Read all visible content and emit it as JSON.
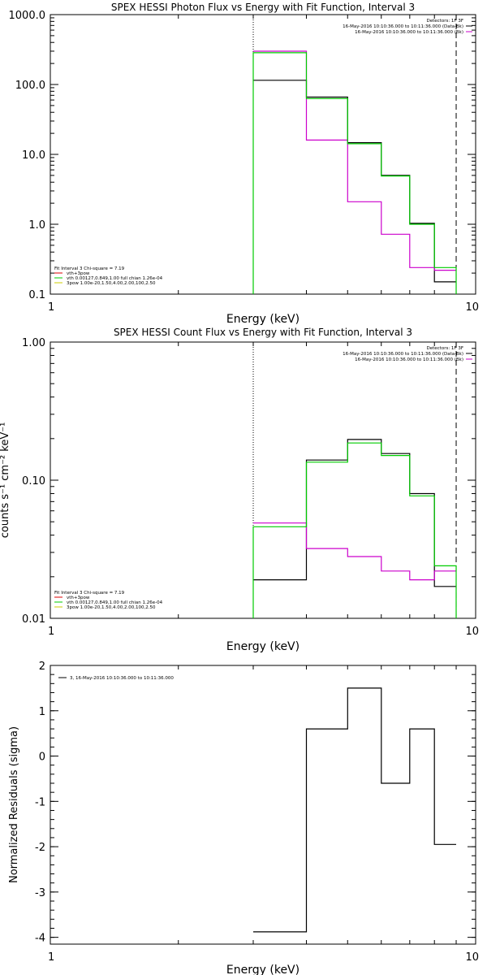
{
  "chart_data": [
    {
      "type": "line",
      "title": "SPEX HESSI Photon Flux vs Energy with Fit Function, Interval 3",
      "xlabel": "Energy (keV)",
      "ylabel": "",
      "x_scale": "log",
      "y_scale": "log",
      "xlim": [
        1,
        10
      ],
      "ylim": [
        0.1,
        1000
      ],
      "x_ticks": [
        {
          "v": 1,
          "label": "1"
        },
        {
          "v": 10,
          "label": "10"
        }
      ],
      "y_ticks": [
        {
          "v": 0.1,
          "label": "0.1"
        },
        {
          "v": 1,
          "label": "1.0"
        },
        {
          "v": 10,
          "label": "10.0"
        },
        {
          "v": 100,
          "label": "100.0"
        },
        {
          "v": 1000,
          "label": "1000.0"
        }
      ],
      "legend_top_right": [
        {
          "text": "Detectors: 1F 3F",
          "color": ""
        },
        {
          "text": "16-May-2016 10:10:36.000 to 10:11:36.000 (Data-Bk)",
          "color": "#000000"
        },
        {
          "text": "16-May-2016 10:10:36.000 to 10:11:36.000 (Bk)",
          "color": "#cc00cc"
        }
      ],
      "legend_bottom_left": [
        {
          "text": "Fit Interval 3   Chi-square = 7.19",
          "color": ""
        },
        {
          "text": "vth+3pow",
          "color": "#dd0000"
        },
        {
          "text": "vth 0.00127,0.849,1.00  full chian 1.26e-04",
          "color": "#00cc00"
        },
        {
          "text": "3pow 1.00e-20,1.50,4.00,2.00,100,2.50",
          "color": "#cccc00"
        }
      ],
      "vlines": [
        {
          "x": 3.0,
          "style": "dotted"
        },
        {
          "x": 9.0,
          "style": "dashed"
        }
      ],
      "bin_edges": [
        3.0,
        4.0,
        5.0,
        6.0,
        7.0,
        8.0,
        9.0
      ],
      "series": [
        {
          "color": "#000000",
          "values": [
            115,
            66,
            14.7,
            5.0,
            1.03,
            0.15
          ]
        },
        {
          "color": "#cc00cc",
          "values": [
            300,
            16,
            2.1,
            0.72,
            0.24,
            0.22
          ]
        },
        {
          "color": "#00cc00",
          "values": [
            285,
            63,
            14.2,
            4.9,
            1.0,
            0.24
          ]
        }
      ]
    },
    {
      "type": "line",
      "title": "SPEX HESSI Count Flux vs Energy with Fit Function, Interval 3",
      "xlabel": "Energy (keV)",
      "ylabel": "counts s⁻¹ cm⁻² keV⁻¹",
      "x_scale": "log",
      "y_scale": "log",
      "xlim": [
        1,
        10
      ],
      "ylim": [
        0.01,
        1
      ],
      "x_ticks": [
        {
          "v": 1,
          "label": "1"
        },
        {
          "v": 10,
          "label": "10"
        }
      ],
      "y_ticks": [
        {
          "v": 0.01,
          "label": "0.01"
        },
        {
          "v": 0.1,
          "label": "0.10"
        },
        {
          "v": 1,
          "label": "1.00"
        }
      ],
      "legend_top_right": [
        {
          "text": "Detectors: 1F 3F",
          "color": ""
        },
        {
          "text": "16-May-2016 10:10:36.000 to 10:11:36.000 (Data-Bk)",
          "color": "#000000"
        },
        {
          "text": "16-May-2016 10:10:36.000 to 10:11:36.000 (Bk)",
          "color": "#cc00cc"
        }
      ],
      "legend_bottom_left": [
        {
          "text": "Fit Interval 3   Chi-square = 7.19",
          "color": ""
        },
        {
          "text": "vth+3pow",
          "color": "#dd0000"
        },
        {
          "text": "vth 0.00127,0.849,1.00  full chian 1.26e-04",
          "color": "#00cc00"
        },
        {
          "text": "3pow 1.00e-20,1.50,4.00,2.00,100,2.50",
          "color": "#cccc00"
        }
      ],
      "vlines": [
        {
          "x": 3.0,
          "style": "dotted"
        },
        {
          "x": 9.0,
          "style": "dashed"
        }
      ],
      "bin_edges": [
        3.0,
        4.0,
        5.0,
        6.0,
        7.0,
        8.0,
        9.0
      ],
      "series": [
        {
          "color": "#000000",
          "values": [
            0.019,
            0.14,
            0.197,
            0.156,
            0.08,
            0.017
          ]
        },
        {
          "color": "#cc00cc",
          "values": [
            0.049,
            0.032,
            0.028,
            0.022,
            0.019,
            0.022
          ]
        },
        {
          "color": "#00cc00",
          "values": [
            0.046,
            0.135,
            0.186,
            0.151,
            0.077,
            0.024
          ]
        }
      ]
    },
    {
      "type": "line",
      "title": "",
      "xlabel": "Energy (keV)",
      "ylabel": "Normalized Residuals (sigma)",
      "x_scale": "log",
      "y_scale": "linear",
      "xlim": [
        1,
        10
      ],
      "ylim": [
        -4.15,
        2
      ],
      "x_ticks": [
        {
          "v": 1,
          "label": "1"
        },
        {
          "v": 10,
          "label": "10"
        }
      ],
      "y_ticks": [
        {
          "v": -4,
          "label": "-4"
        },
        {
          "v": -3,
          "label": "-3"
        },
        {
          "v": -2,
          "label": "-2"
        },
        {
          "v": -1,
          "label": "-1"
        },
        {
          "v": 0,
          "label": "0"
        },
        {
          "v": 1,
          "label": "1"
        },
        {
          "v": 2,
          "label": "2"
        }
      ],
      "legend_top_left": [
        {
          "text": "3, 16-May-2016 10:10:36.000 to 10:11:36.000",
          "color": "#000000"
        }
      ],
      "bin_edges": [
        3.0,
        4.0,
        5.0,
        6.0,
        7.0,
        8.0,
        9.0
      ],
      "series": [
        {
          "color": "#000000",
          "values": [
            -3.88,
            0.6,
            1.5,
            -0.6,
            0.6,
            -1.95
          ]
        }
      ]
    }
  ]
}
